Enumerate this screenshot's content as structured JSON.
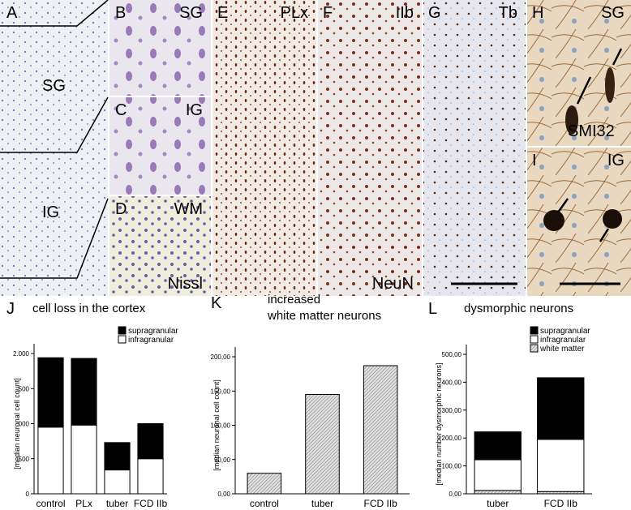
{
  "micrographs": [
    {
      "letter": "A",
      "labels": [
        "SG",
        "IG"
      ]
    },
    {
      "letter": "B",
      "labels": [
        "SG"
      ]
    },
    {
      "letter": "C",
      "labels": [
        "IG"
      ]
    },
    {
      "letter": "D",
      "labels": [
        "WM",
        "Nissl"
      ]
    },
    {
      "letter": "E",
      "labels": [
        "PLx"
      ]
    },
    {
      "letter": "F",
      "labels": [
        "IIb",
        "NeuN"
      ]
    },
    {
      "letter": "G",
      "labels": [
        "Tb"
      ]
    },
    {
      "letter": "H",
      "labels": [
        "SG",
        "SMI32"
      ]
    },
    {
      "letter": "I",
      "labels": [
        "IG"
      ]
    }
  ],
  "chart_data": [
    {
      "type": "bar",
      "stacked": true,
      "panel": "J",
      "title": "cell loss in the cortex",
      "ylabel": "[median neuronal cell count]",
      "categories": [
        "control",
        "PLx",
        "tuber",
        "FCD IIb"
      ],
      "series": [
        {
          "name": "supragranular",
          "color": "#000000",
          "values": [
            990,
            950,
            390,
            500
          ]
        },
        {
          "name": "infragranular",
          "color": "#ffffff",
          "values": [
            950,
            980,
            340,
            500
          ]
        }
      ],
      "ylim": [
        0,
        2000
      ],
      "yticks": [
        0,
        500,
        {
          "value": 1000,
          "label": ".000"
        },
        {
          "value": 1500,
          "label": ".500"
        },
        {
          "value": 2000,
          "label": "2.000"
        }
      ],
      "legend": "upper right"
    },
    {
      "type": "bar",
      "panel": "K",
      "title": [
        "increased",
        "white matter neurons"
      ],
      "ylabel": "[median neuronal cell count]",
      "categories": [
        "control",
        "tuber",
        "FCD IIb"
      ],
      "values": [
        30,
        145,
        187
      ],
      "color": "#c8c8c8",
      "hatch": true,
      "ylim": [
        0,
        200
      ],
      "yticks": [
        {
          "value": 0,
          "label": "0,00"
        },
        {
          "value": 50,
          "label": "50,00"
        },
        {
          "value": 100,
          "label": "100,00"
        },
        {
          "value": 150,
          "label": "150,00"
        },
        {
          "value": 200,
          "label": "200,00"
        }
      ]
    },
    {
      "type": "bar",
      "stacked": true,
      "panel": "L",
      "title": "dysmorphic neurons",
      "ylabel": "[median number dysmorphic neurons]",
      "categories": [
        "tuber",
        "FCD IIb"
      ],
      "series": [
        {
          "name": "supragranular",
          "color": "#000000",
          "values": [
            100,
            221
          ]
        },
        {
          "name": "infragranular",
          "color": "#ffffff",
          "values": [
            110,
            187
          ]
        },
        {
          "name": "white matter",
          "color": "#c8c8c8",
          "hatch": true,
          "values": [
            12,
            8
          ]
        }
      ],
      "ylim": [
        0,
        500
      ],
      "yticks": [
        {
          "value": 0,
          "label": "0,00"
        },
        {
          "value": 100,
          "label": "100,00"
        },
        {
          "value": 200,
          "label": "200,00"
        },
        {
          "value": 300,
          "label": "300,00"
        },
        {
          "value": 400,
          "label": "400,00"
        },
        {
          "value": 500,
          "label": "500,00"
        }
      ],
      "legend": "upper right"
    }
  ]
}
